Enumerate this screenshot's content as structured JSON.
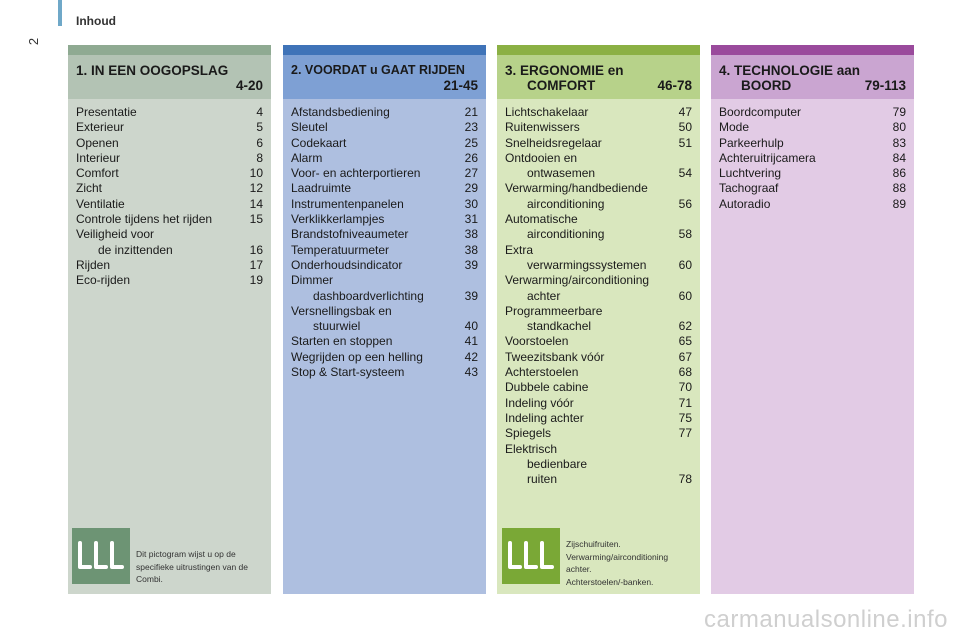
{
  "page_number": "2",
  "section_title": "Inhoud",
  "columns": [
    {
      "head_line1": "1. IN EEN OOGOPSLAG",
      "head_line2": "4-20",
      "items": [
        {
          "t": "Presentatie",
          "p": "4"
        },
        {
          "t": "Exterieur",
          "p": "5"
        },
        {
          "t": "Openen",
          "p": "6"
        },
        {
          "t": "Interieur",
          "p": "8"
        },
        {
          "t": "Comfort",
          "p": "10"
        },
        {
          "t": "Zicht",
          "p": "12"
        },
        {
          "t": "Ventilatie",
          "p": "14"
        },
        {
          "t": "Controle tijdens het rijden",
          "p": "15"
        },
        {
          "t": "Veiligheid voor",
          "p": ""
        },
        {
          "t": "de inzittenden",
          "p": "16",
          "indent": true
        },
        {
          "t": "Rijden",
          "p": "17"
        },
        {
          "t": "Eco-rijden",
          "p": "19"
        }
      ],
      "note": "Dit pictogram wijst u op de specifieke uitrustingen van de Combi."
    },
    {
      "head_line1": "2. VOORDAT u GAAT RIJDEN",
      "head_line2": "21-45",
      "items": [
        {
          "t": "Afstandsbediening",
          "p": "21"
        },
        {
          "t": "Sleutel",
          "p": "23"
        },
        {
          "t": "Codekaart",
          "p": "25"
        },
        {
          "t": "Alarm",
          "p": "26"
        },
        {
          "t": "Voor- en achterportieren",
          "p": "27"
        },
        {
          "t": "Laadruimte",
          "p": "29"
        },
        {
          "t": "Instrumentenpanelen",
          "p": "30"
        },
        {
          "t": "Verklikkerlampjes",
          "p": "31"
        },
        {
          "t": "Brandstofniveaumeter",
          "p": "38"
        },
        {
          "t": "Temperatuurmeter",
          "p": "38"
        },
        {
          "t": "Onderhoudsindicator",
          "p": "39"
        },
        {
          "t": "Dimmer",
          "p": ""
        },
        {
          "t": "dashboardverlichting",
          "p": "39",
          "indent": true
        },
        {
          "t": "Versnellingsbak en",
          "p": ""
        },
        {
          "t": "stuurwiel",
          "p": "40",
          "indent": true
        },
        {
          "t": "Starten en stoppen",
          "p": "41"
        },
        {
          "t": "Wegrijden op een helling",
          "p": "42"
        },
        {
          "t": "Stop & Start-systeem",
          "p": "43"
        }
      ]
    },
    {
      "head_line1": "3. ERGONOMIE en",
      "head_line2_indent": "COMFORT",
      "head_line2": "46-78",
      "items": [
        {
          "t": "Lichtschakelaar",
          "p": "47"
        },
        {
          "t": "Ruitenwissers",
          "p": "50"
        },
        {
          "t": "Snelheidsregelaar",
          "p": "51"
        },
        {
          "t": "Ontdooien en",
          "p": ""
        },
        {
          "t": "ontwasemen",
          "p": "54",
          "indent": true
        },
        {
          "t": "Verwarming/handbediende",
          "p": ""
        },
        {
          "t": "airconditioning",
          "p": "56",
          "indent": true
        },
        {
          "t": "Automatische",
          "p": ""
        },
        {
          "t": "airconditioning",
          "p": "58",
          "indent": true
        },
        {
          "t": "Extra",
          "p": ""
        },
        {
          "t": "verwarmingssystemen",
          "p": "60",
          "indent": true
        },
        {
          "t": "Verwarming/airconditioning",
          "p": ""
        },
        {
          "t": "achter",
          "p": "60",
          "indent": true
        },
        {
          "t": "Programmeerbare",
          "p": ""
        },
        {
          "t": "standkachel",
          "p": "62",
          "indent": true
        },
        {
          "t": "Voorstoelen",
          "p": "65"
        },
        {
          "t": "Tweezitsbank vóór",
          "p": "67"
        },
        {
          "t": "Achterstoelen",
          "p": "68"
        },
        {
          "t": "Dubbele cabine",
          "p": "70"
        },
        {
          "t": "Indeling vóór",
          "p": "71"
        },
        {
          "t": "Indeling achter",
          "p": "75"
        },
        {
          "t": "Spiegels",
          "p": "77"
        },
        {
          "t": "Elektrisch",
          "p": ""
        },
        {
          "t": "bedienbare",
          "p": "",
          "indent": true
        },
        {
          "t": "ruiten",
          "p": "78",
          "indent": true
        }
      ],
      "note_lines": [
        "Zijschuifruiten.",
        "Verwarming/airconditioning",
        "achter.",
        "Achterstoelen/-banken."
      ]
    },
    {
      "head_line1": "4. TECHNOLOGIE aan",
      "head_line2_indent": "BOORD",
      "head_line2": "79-113",
      "items": [
        {
          "t": "Boordcomputer",
          "p": "79"
        },
        {
          "t": "Mode",
          "p": "80"
        },
        {
          "t": "Parkeerhulp",
          "p": "83"
        },
        {
          "t": "Achteruitrijcamera",
          "p": "84"
        },
        {
          "t": "Luchtvering",
          "p": "86"
        },
        {
          "t": "Tachograaf",
          "p": "88"
        },
        {
          "t": "Autoradio",
          "p": "89"
        }
      ]
    }
  ],
  "seat_icon": "seats-icon",
  "colors": {
    "col1": "#cdd6cc",
    "col2": "#aebfe0",
    "col3": "#d9e7be",
    "col4": "#e2cbe5",
    "icon1": "#6d9474",
    "icon3": "#7aa836"
  },
  "watermark": "carmanualsonline.info"
}
